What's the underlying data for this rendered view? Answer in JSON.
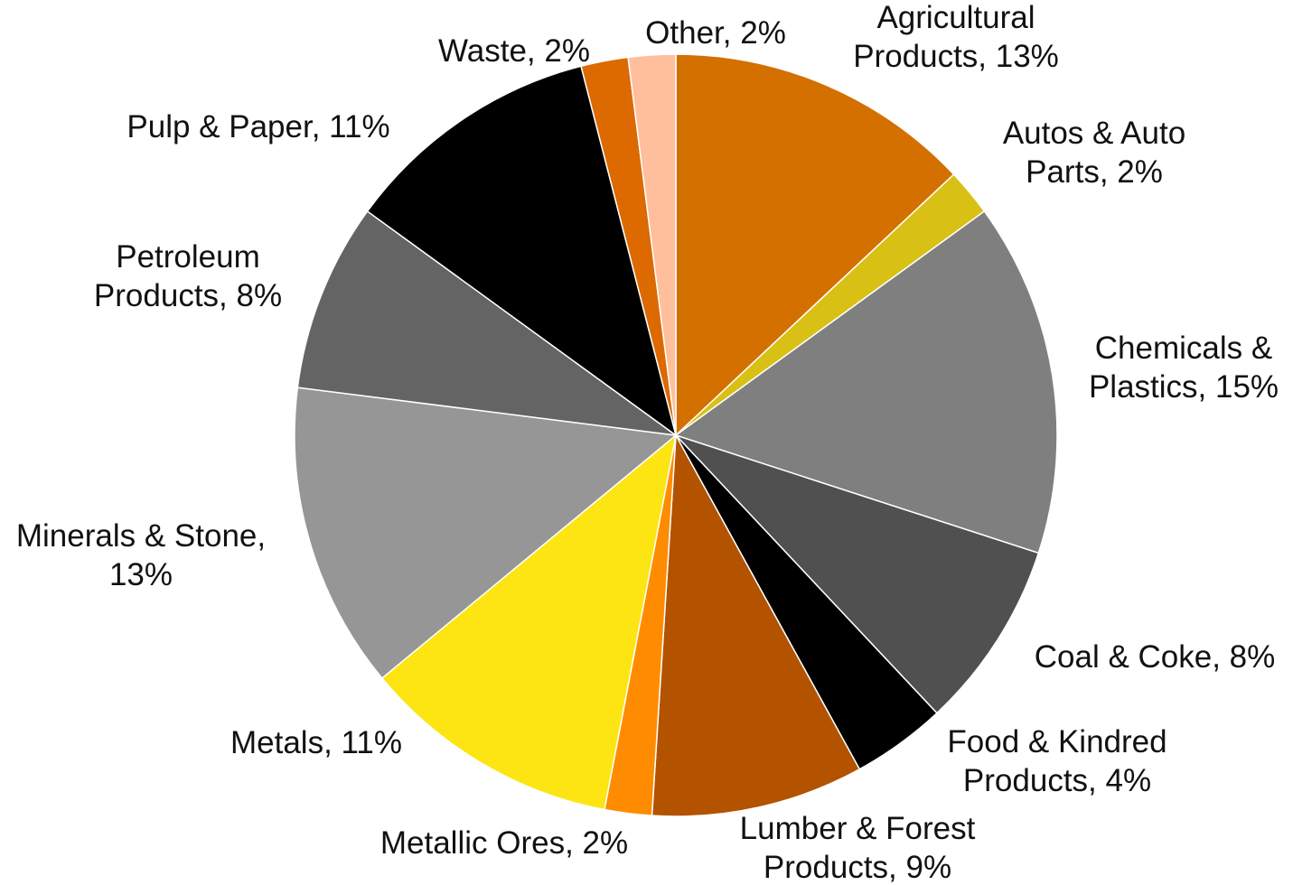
{
  "chart_data": {
    "type": "pie",
    "title": "",
    "slices": [
      {
        "name": "Agricultural Products",
        "value": 13,
        "label_lines": [
          "Agricultural",
          "Products, 13%"
        ],
        "color": "#D47000"
      },
      {
        "name": "Autos & Auto Parts",
        "value": 2,
        "label_lines": [
          "Autos & Auto",
          "Parts, 2%"
        ],
        "color": "#D9C014"
      },
      {
        "name": "Chemicals & Plastics",
        "value": 15,
        "label_lines": [
          "Chemicals &",
          "Plastics, 15%"
        ],
        "color": "#7F7F7F"
      },
      {
        "name": "Coal & Coke",
        "value": 8,
        "label_lines": [
          "Coal & Coke, 8%"
        ],
        "color": "#505050"
      },
      {
        "name": "Food & Kindred Products",
        "value": 4,
        "label_lines": [
          "Food & Kindred",
          "Products, 4%"
        ],
        "color": "#000000"
      },
      {
        "name": "Lumber & Forest Products",
        "value": 9,
        "label_lines": [
          "Lumber & Forest",
          "Products, 9%"
        ],
        "color": "#B35300"
      },
      {
        "name": "Metallic Ores",
        "value": 2,
        "label_lines": [
          "Metallic Ores, 2%"
        ],
        "color": "#FF8C00"
      },
      {
        "name": "Metals",
        "value": 11,
        "label_lines": [
          "Metals, 11%"
        ],
        "color": "#FCE512"
      },
      {
        "name": "Minerals & Stone",
        "value": 13,
        "label_lines": [
          "Minerals & Stone,",
          "13%"
        ],
        "color": "#969696"
      },
      {
        "name": "Petroleum Products",
        "value": 8,
        "label_lines": [
          "Petroleum",
          "Products, 8%"
        ],
        "color": "#646464"
      },
      {
        "name": "Pulp & Paper",
        "value": 11,
        "label_lines": [
          "Pulp & Paper, 11%"
        ],
        "color": "#000000"
      },
      {
        "name": "Waste",
        "value": 2,
        "label_lines": [
          "Waste, 2%"
        ],
        "color": "#DC6A00"
      },
      {
        "name": "Other",
        "value": 2,
        "label_lines": [
          "Other, 2%"
        ],
        "color": "#FFBE9C"
      }
    ],
    "start": "12 o'clock",
    "direction": "clockwise",
    "legend": "none (data labels beside slices)"
  }
}
